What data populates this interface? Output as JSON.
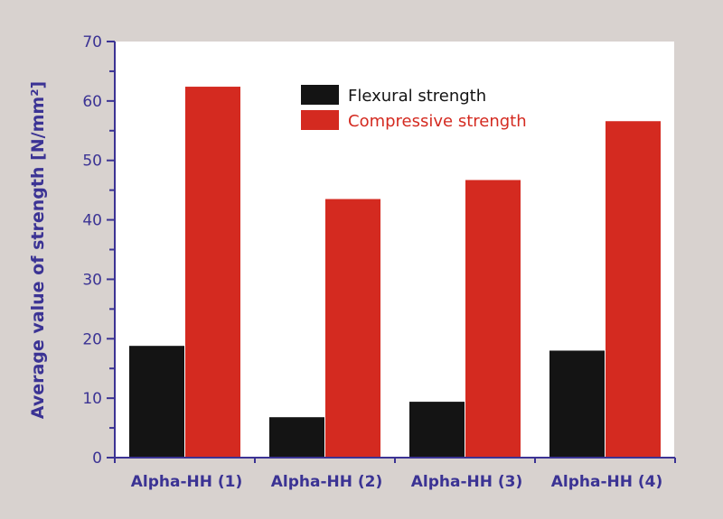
{
  "chart_data": {
    "type": "bar",
    "title": "",
    "xlabel": "",
    "ylabel": "Average value of strength [N/mm²]",
    "ylim": [
      0,
      70
    ],
    "yticks": [
      0,
      10,
      20,
      30,
      40,
      50,
      60,
      70
    ],
    "categories": [
      "Alpha-HH (1)",
      "Alpha-HH (2)",
      "Alpha-HH (3)",
      "Alpha-HH (4)"
    ],
    "series": [
      {
        "name": "Flexural strength",
        "color": "#141414",
        "values": [
          18.8,
          6.8,
          9.4,
          18.0
        ]
      },
      {
        "name": "Compressive strength",
        "color": "#d42a20",
        "values": [
          62.4,
          43.5,
          46.7,
          56.6
        ]
      }
    ],
    "legend_position": "top-center",
    "grid": false
  },
  "colors": {
    "axis": "#3b3394",
    "background": "#d8d2cf",
    "plot": "#ffffff"
  }
}
